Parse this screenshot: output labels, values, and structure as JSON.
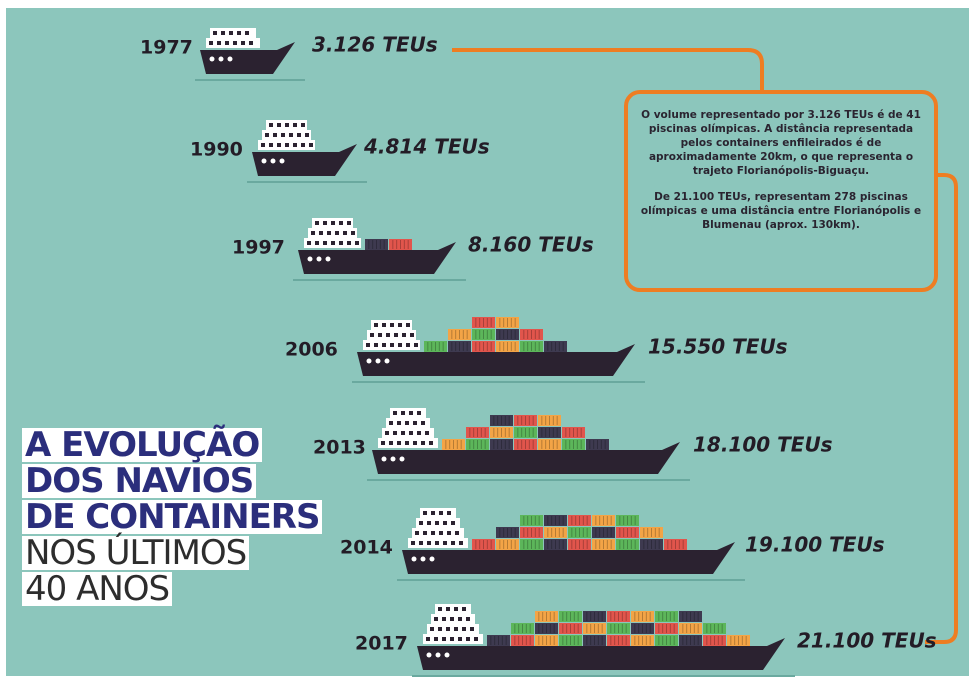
{
  "title": {
    "lines": [
      "A EVOLUÇÃO",
      "DOS NAVIOS",
      "DE CONTAINERS",
      "NOS ÚLTIMOS",
      "40 ANOS"
    ]
  },
  "ships": [
    {
      "year": "1977",
      "capacity": "3.126 TEUs"
    },
    {
      "year": "1990",
      "capacity": "4.814 TEUs"
    },
    {
      "year": "1997",
      "capacity": "8.160 TEUs"
    },
    {
      "year": "2006",
      "capacity": "15.550 TEUs"
    },
    {
      "year": "2013",
      "capacity": "18.100 TEUs"
    },
    {
      "year": "2014",
      "capacity": "19.100 TEUs"
    },
    {
      "year": "2017",
      "capacity": "21.100 TEUs"
    }
  ],
  "note": {
    "paragraphs": [
      "O volume representado por 3.126 TEUs é de 41 piscinas olímpicas. A distância representada pelos containers enfileirados é de aproximadamente 20km, o que representa o trajeto Florianópolis-Biguaçu.",
      "De 21.100 TEUs, representam 278 piscinas olímpicas e uma distância entre Florianópolis e Blumenau (aprox. 130km)."
    ]
  }
}
